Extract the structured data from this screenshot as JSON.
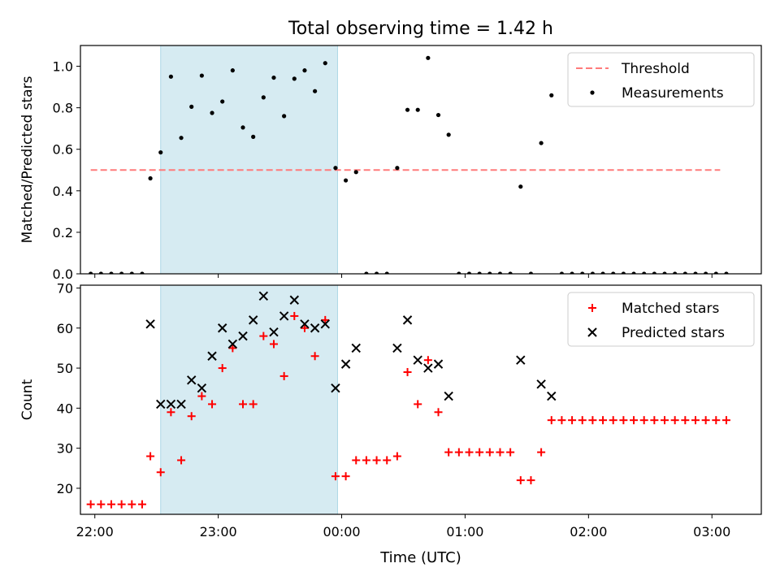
{
  "figure": {
    "title": "Total observing time = 1.42 h",
    "xlabel": "Time (UTC)",
    "x_ticks": [
      "22:00",
      "23:00",
      "00:00",
      "01:00",
      "02:00",
      "03:00"
    ]
  },
  "chart_data": [
    {
      "type": "scatter",
      "xlabel": "",
      "ylabel": "Matched/Predicted stars",
      "xlim": [
        "21:53",
        "03:24"
      ],
      "ylim": [
        0,
        1.1
      ],
      "y_ticks": [
        "0.0",
        "0.2",
        "0.4",
        "0.6",
        "0.8",
        "1.0"
      ],
      "shaded_span": [
        "22:32",
        "23:58"
      ],
      "legend_position": "top-right",
      "legend": [
        {
          "label": "Threshold",
          "kind": "dashed-line",
          "color": "#ff7b7b"
        },
        {
          "label": "Measurements",
          "kind": "dot",
          "color": "#000000"
        }
      ],
      "threshold": {
        "y": 0.5,
        "x_range": [
          "21:58",
          "03:04"
        ]
      },
      "series": [
        {
          "name": "Measurements",
          "points": [
            [
              "21:58",
              0
            ],
            [
              "22:03",
              0
            ],
            [
              "22:08",
              0
            ],
            [
              "22:13",
              0
            ],
            [
              "22:18",
              0
            ],
            [
              "22:23",
              0
            ],
            [
              "22:27",
              0.46
            ],
            [
              "22:32",
              0.585
            ],
            [
              "22:37",
              0.95
            ],
            [
              "22:42",
              0.655
            ],
            [
              "22:47",
              0.805
            ],
            [
              "22:52",
              0.955
            ],
            [
              "22:57",
              0.775
            ],
            [
              "23:02",
              0.83
            ],
            [
              "23:07",
              0.98
            ],
            [
              "23:12",
              0.705
            ],
            [
              "23:17",
              0.66
            ],
            [
              "23:22",
              0.85
            ],
            [
              "23:27",
              0.945
            ],
            [
              "23:32",
              0.76
            ],
            [
              "23:37",
              0.94
            ],
            [
              "23:42",
              0.98
            ],
            [
              "23:47",
              0.88
            ],
            [
              "23:52",
              1.015
            ],
            [
              "23:57",
              0.51
            ],
            [
              "00:02",
              0.45
            ],
            [
              "00:07",
              0.49
            ],
            [
              "00:12",
              0
            ],
            [
              "00:17",
              0
            ],
            [
              "00:22",
              0
            ],
            [
              "00:27",
              0.51
            ],
            [
              "00:32",
              0.79
            ],
            [
              "00:37",
              0.79
            ],
            [
              "00:42",
              1.04
            ],
            [
              "00:47",
              0.765
            ],
            [
              "00:52",
              0.67
            ],
            [
              "00:57",
              0
            ],
            [
              "01:02",
              0
            ],
            [
              "01:07",
              0
            ],
            [
              "01:12",
              0
            ],
            [
              "01:17",
              0
            ],
            [
              "01:22",
              0
            ],
            [
              "01:27",
              0.42
            ],
            [
              "01:32",
              0
            ],
            [
              "01:37",
              0.63
            ],
            [
              "01:42",
              0.86
            ],
            [
              "01:47",
              0
            ],
            [
              "01:52",
              0
            ],
            [
              "01:57",
              0
            ],
            [
              "02:02",
              0
            ],
            [
              "02:07",
              0
            ],
            [
              "02:12",
              0
            ],
            [
              "02:17",
              0
            ],
            [
              "02:22",
              0
            ],
            [
              "02:27",
              0
            ],
            [
              "02:32",
              0
            ],
            [
              "02:37",
              0
            ],
            [
              "02:42",
              0
            ],
            [
              "02:47",
              0
            ],
            [
              "02:52",
              0
            ],
            [
              "02:57",
              0
            ],
            [
              "03:02",
              0
            ],
            [
              "03:07",
              0
            ]
          ]
        }
      ]
    },
    {
      "type": "scatter",
      "xlabel": "Time (UTC)",
      "ylabel": "Count",
      "xlim": [
        "21:53",
        "03:24"
      ],
      "ylim": [
        13.5,
        70.7
      ],
      "y_ticks": [
        "20",
        "30",
        "40",
        "50",
        "60",
        "70"
      ],
      "shaded_span": [
        "22:32",
        "23:58"
      ],
      "legend_position": "top-right",
      "legend": [
        {
          "label": "Matched stars",
          "kind": "plus",
          "color": "#ff0000"
        },
        {
          "label": "Predicted stars",
          "kind": "x",
          "color": "#000000"
        }
      ],
      "series": [
        {
          "name": "Matched stars",
          "points": [
            [
              "21:58",
              16
            ],
            [
              "22:03",
              16
            ],
            [
              "22:08",
              16
            ],
            [
              "22:13",
              16
            ],
            [
              "22:18",
              16
            ],
            [
              "22:23",
              16
            ],
            [
              "22:27",
              28
            ],
            [
              "22:32",
              24
            ],
            [
              "22:37",
              39
            ],
            [
              "22:42",
              27
            ],
            [
              "22:47",
              38
            ],
            [
              "22:52",
              43
            ],
            [
              "22:57",
              41
            ],
            [
              "23:02",
              50
            ],
            [
              "23:07",
              55
            ],
            [
              "23:12",
              41
            ],
            [
              "23:17",
              41
            ],
            [
              "23:22",
              58
            ],
            [
              "23:27",
              56
            ],
            [
              "23:32",
              48
            ],
            [
              "23:37",
              63
            ],
            [
              "23:42",
              60
            ],
            [
              "23:47",
              53
            ],
            [
              "23:52",
              62
            ],
            [
              "23:57",
              23
            ],
            [
              "00:02",
              23
            ],
            [
              "00:07",
              27
            ],
            [
              "00:12",
              27
            ],
            [
              "00:17",
              27
            ],
            [
              "00:22",
              27
            ],
            [
              "00:27",
              28
            ],
            [
              "00:32",
              49
            ],
            [
              "00:37",
              41
            ],
            [
              "00:42",
              52
            ],
            [
              "00:47",
              39
            ],
            [
              "00:52",
              29
            ],
            [
              "00:57",
              29
            ],
            [
              "01:02",
              29
            ],
            [
              "01:07",
              29
            ],
            [
              "01:12",
              29
            ],
            [
              "01:17",
              29
            ],
            [
              "01:22",
              29
            ],
            [
              "01:27",
              22
            ],
            [
              "01:32",
              22
            ],
            [
              "01:37",
              29
            ],
            [
              "01:42",
              37
            ],
            [
              "01:47",
              37
            ],
            [
              "01:52",
              37
            ],
            [
              "01:57",
              37
            ],
            [
              "02:02",
              37
            ],
            [
              "02:07",
              37
            ],
            [
              "02:12",
              37
            ],
            [
              "02:17",
              37
            ],
            [
              "02:22",
              37
            ],
            [
              "02:27",
              37
            ],
            [
              "02:32",
              37
            ],
            [
              "02:37",
              37
            ],
            [
              "02:42",
              37
            ],
            [
              "02:47",
              37
            ],
            [
              "02:52",
              37
            ],
            [
              "02:57",
              37
            ],
            [
              "03:02",
              37
            ],
            [
              "03:07",
              37
            ]
          ]
        },
        {
          "name": "Predicted stars",
          "points": [
            [
              "22:27",
              61
            ],
            [
              "22:32",
              41
            ],
            [
              "22:37",
              41
            ],
            [
              "22:42",
              41
            ],
            [
              "22:47",
              47
            ],
            [
              "22:52",
              45
            ],
            [
              "22:57",
              53
            ],
            [
              "23:02",
              60
            ],
            [
              "23:07",
              56
            ],
            [
              "23:12",
              58
            ],
            [
              "23:17",
              62
            ],
            [
              "23:22",
              68
            ],
            [
              "23:27",
              59
            ],
            [
              "23:32",
              63
            ],
            [
              "23:37",
              67
            ],
            [
              "23:42",
              61
            ],
            [
              "23:47",
              60
            ],
            [
              "23:52",
              61
            ],
            [
              "23:57",
              45
            ],
            [
              "00:02",
              51
            ],
            [
              "00:07",
              55
            ],
            [
              "00:27",
              55
            ],
            [
              "00:32",
              62
            ],
            [
              "00:37",
              52
            ],
            [
              "00:42",
              50
            ],
            [
              "00:47",
              51
            ],
            [
              "00:52",
              43
            ],
            [
              "01:27",
              52
            ],
            [
              "01:37",
              46
            ],
            [
              "01:42",
              43
            ]
          ]
        }
      ]
    }
  ]
}
